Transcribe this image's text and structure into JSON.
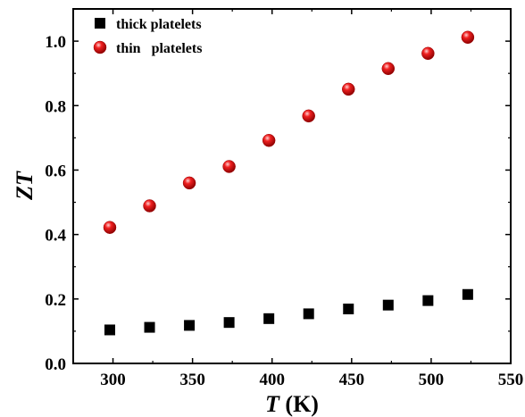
{
  "chart_data": {
    "type": "scatter",
    "xlabel": {
      "var": "T",
      "unit": " (K)"
    },
    "ylabel": "ZT",
    "xlim": [
      275,
      550
    ],
    "ylim": [
      0.0,
      1.1
    ],
    "xticks": [
      300,
      350,
      400,
      450,
      500,
      550
    ],
    "xtick_labels": [
      "300",
      "350",
      "400",
      "450",
      "500",
      "550"
    ],
    "yticks": [
      0.0,
      0.2,
      0.4,
      0.6,
      0.8,
      1.0
    ],
    "ytick_labels": [
      "0.0",
      "0.2",
      "0.4",
      "0.6",
      "0.8",
      "1.0"
    ],
    "grid": false,
    "legend_position": "top-left",
    "series": [
      {
        "name": "thick platelets",
        "marker": "square",
        "color": "#000000",
        "x": [
          298,
          323,
          348,
          373,
          398,
          423,
          448,
          473,
          498,
          523
        ],
        "y": [
          0.104,
          0.112,
          0.118,
          0.127,
          0.139,
          0.154,
          0.169,
          0.181,
          0.195,
          0.214
        ]
      },
      {
        "name": "thin   platelets",
        "marker": "sphere",
        "color": "#e00000",
        "x": [
          298,
          323,
          348,
          373,
          398,
          423,
          448,
          473,
          498,
          523
        ],
        "y": [
          0.422,
          0.489,
          0.56,
          0.611,
          0.692,
          0.768,
          0.851,
          0.915,
          0.962,
          1.012
        ]
      }
    ]
  }
}
